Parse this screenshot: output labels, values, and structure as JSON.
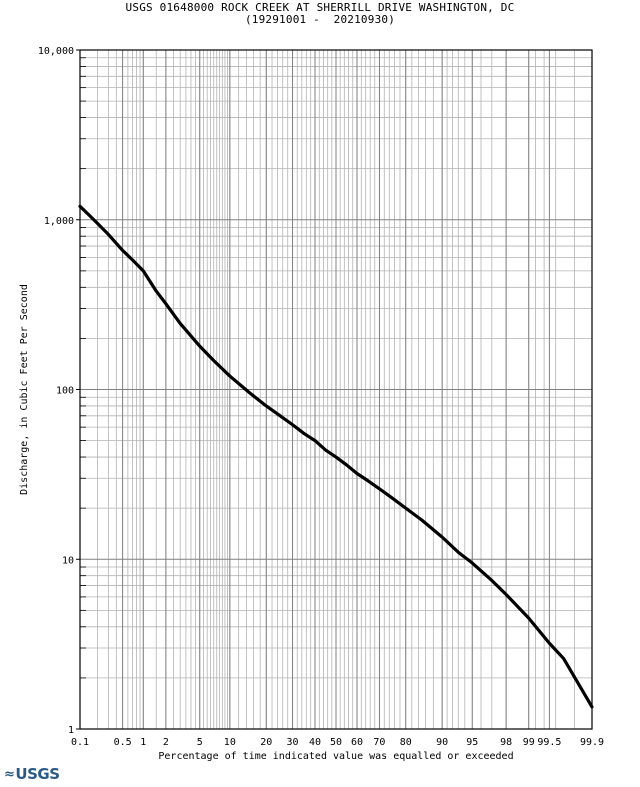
{
  "chart_data": {
    "type": "line",
    "title": "USGS 01648000 ROCK CREEK AT SHERRILL DRIVE WASHINGTON, DC",
    "subtitle": "(19291001 -  20210930)",
    "xlabel": "Percentage of time indicated value was equalled or exceeded",
    "ylabel": "Discharge, in Cubic Feet Per Second",
    "x_scale": "probability",
    "y_scale": "log",
    "xlim": [
      0.1,
      99.9
    ],
    "ylim": [
      1,
      10000
    ],
    "x_ticks": [
      0.1,
      0.5,
      1,
      2,
      5,
      10,
      20,
      30,
      40,
      50,
      60,
      70,
      80,
      90,
      95,
      98,
      99,
      99.5,
      99.9
    ],
    "x_tick_labels": [
      "0.1",
      "0.5",
      "1",
      "2",
      "5",
      "10",
      "20",
      "30",
      "40",
      "50",
      "60",
      "70",
      "80",
      "90",
      "95",
      "98",
      "99",
      "99.5",
      "99.9"
    ],
    "y_ticks": [
      1,
      10,
      100,
      1000,
      10000
    ],
    "y_tick_labels": [
      "1",
      "10",
      "100",
      "1,000",
      "10,000"
    ],
    "grid": true,
    "series": [
      {
        "color": "#000000",
        "x": [
          0.1,
          0.15,
          0.2,
          0.3,
          0.5,
          0.7,
          1,
          1.5,
          2,
          3,
          5,
          7,
          10,
          15,
          20,
          25,
          30,
          35,
          40,
          45,
          50,
          55,
          60,
          65,
          70,
          75,
          80,
          85,
          90,
          93,
          95,
          97,
          98,
          99,
          99.5,
          99.7,
          99.9
        ],
        "y": [
          1200,
          1050,
          950,
          820,
          660,
          580,
          500,
          380,
          320,
          245,
          180,
          148,
          120,
          95,
          80,
          70,
          62,
          55,
          50,
          44,
          40,
          36,
          32,
          29,
          26,
          23,
          20,
          17,
          13.5,
          11,
          9.5,
          7.5,
          6.2,
          4.5,
          3.2,
          2.6,
          1.35
        ]
      }
    ]
  },
  "logo": {
    "text": "USGS"
  }
}
